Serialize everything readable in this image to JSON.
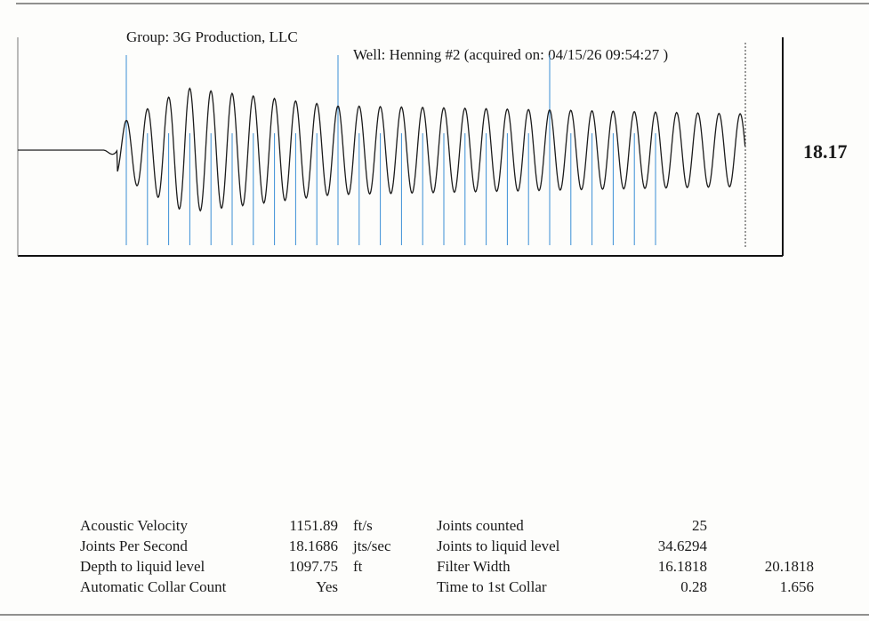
{
  "header": {
    "group": "Group: 3G Production, LLC",
    "well": "Well: Henning #2 (acquired on: 04/15/26 09:54:27 )"
  },
  "trace_value": "18.17",
  "chart_data": {
    "type": "line",
    "title": "",
    "series": [
      {
        "name": "",
        "description_values": "acoustic trace"
      }
    ],
    "joints_per_second": 18.1686,
    "time_to_first_collar": 0.28,
    "collar_markers_count": 26,
    "major_markers": 3,
    "colors": {
      "trace": "#1c1c1c",
      "collar": "#3a8fd6",
      "frame": "#111111"
    }
  },
  "stats": {
    "left": [
      {
        "label": "Acoustic Velocity",
        "value": "1151.89",
        "unit": "ft/s"
      },
      {
        "label": "Joints Per Second",
        "value": "18.1686",
        "unit": "jts/sec"
      },
      {
        "label": "Depth to liquid level",
        "value": "1097.75",
        "unit": "ft"
      },
      {
        "label": "Automatic Collar Count",
        "value": "Yes",
        "unit": ""
      }
    ],
    "right": [
      {
        "label": "Joints counted",
        "value": "25",
        "extra": ""
      },
      {
        "label": "Joints to liquid level",
        "value": "34.6294",
        "extra": ""
      },
      {
        "label": "Filter Width",
        "value": "16.1818",
        "extra": "20.1818"
      },
      {
        "label": "Time to 1st Collar",
        "value": "0.28",
        "extra": "1.656"
      }
    ]
  }
}
